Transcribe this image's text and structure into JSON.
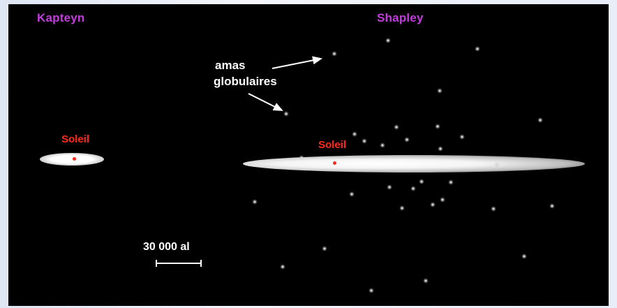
{
  "models": {
    "left_title": "Kapteyn",
    "right_title": "Shapley"
  },
  "labels": {
    "sun_left": "Soleil",
    "sun_right": "Soleil",
    "clusters_line1": "amas",
    "clusters_line2": "globulaires",
    "scale": "30 000 al"
  },
  "colors": {
    "background": "#000000",
    "title": "#c23ddc",
    "sun": "#ff2a1a",
    "text": "#ffffff"
  },
  "cluster_count": 32
}
